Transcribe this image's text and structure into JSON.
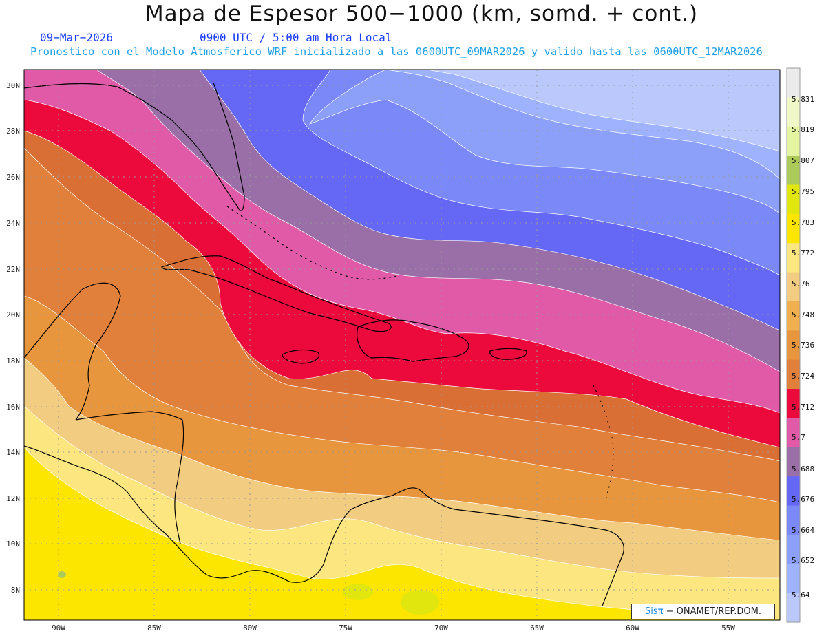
{
  "header": {
    "title": "Mapa de Espesor 500−1000 (km, somd. + cont.)",
    "date": "09−Mar−2026",
    "time": "0900 UTC / 5:00 am Hora Local",
    "forecast_info": "Pronostico con el Modelo Atmosferico WRF inicializado a las 0600UTC_09MAR2026 y valido hasta las  0600UTC_12MAR2026"
  },
  "axes": {
    "lat_labels": [
      "30N",
      "28N",
      "26N",
      "24N",
      "22N",
      "20N",
      "18N",
      "16N",
      "14N",
      "12N",
      "10N",
      "8N"
    ],
    "lon_labels": [
      "90W",
      "85W",
      "80W",
      "75W",
      "70W",
      "65W",
      "60W",
      "55W"
    ]
  },
  "colorbar": {
    "levels": [
      "5.64",
      "5.652",
      "5.664",
      "5.676",
      "5.688",
      "5.7",
      "5.712",
      "5.724",
      "5.736",
      "5.748",
      "5.76",
      "5.772",
      "5.783",
      "5.795",
      "5.807",
      "5.819",
      "5.831"
    ],
    "colors": [
      "#bac8fc",
      "#9eb2fd",
      "#8ca0fa",
      "#7b88f8",
      "#6568f5",
      "#9a6fa8",
      "#e05aa8",
      "#ec0a3c",
      "#e0803a",
      "#e8963e",
      "#f0b050",
      "#f2cc80",
      "#fce680",
      "#fce600",
      "#e0e60e",
      "#acca5a",
      "#e4f4a0",
      "#f0f8c8",
      "#ebebeb"
    ]
  },
  "credit": {
    "brand": "Sisπ",
    "text": "− ONAMET/REP.DOM."
  }
}
